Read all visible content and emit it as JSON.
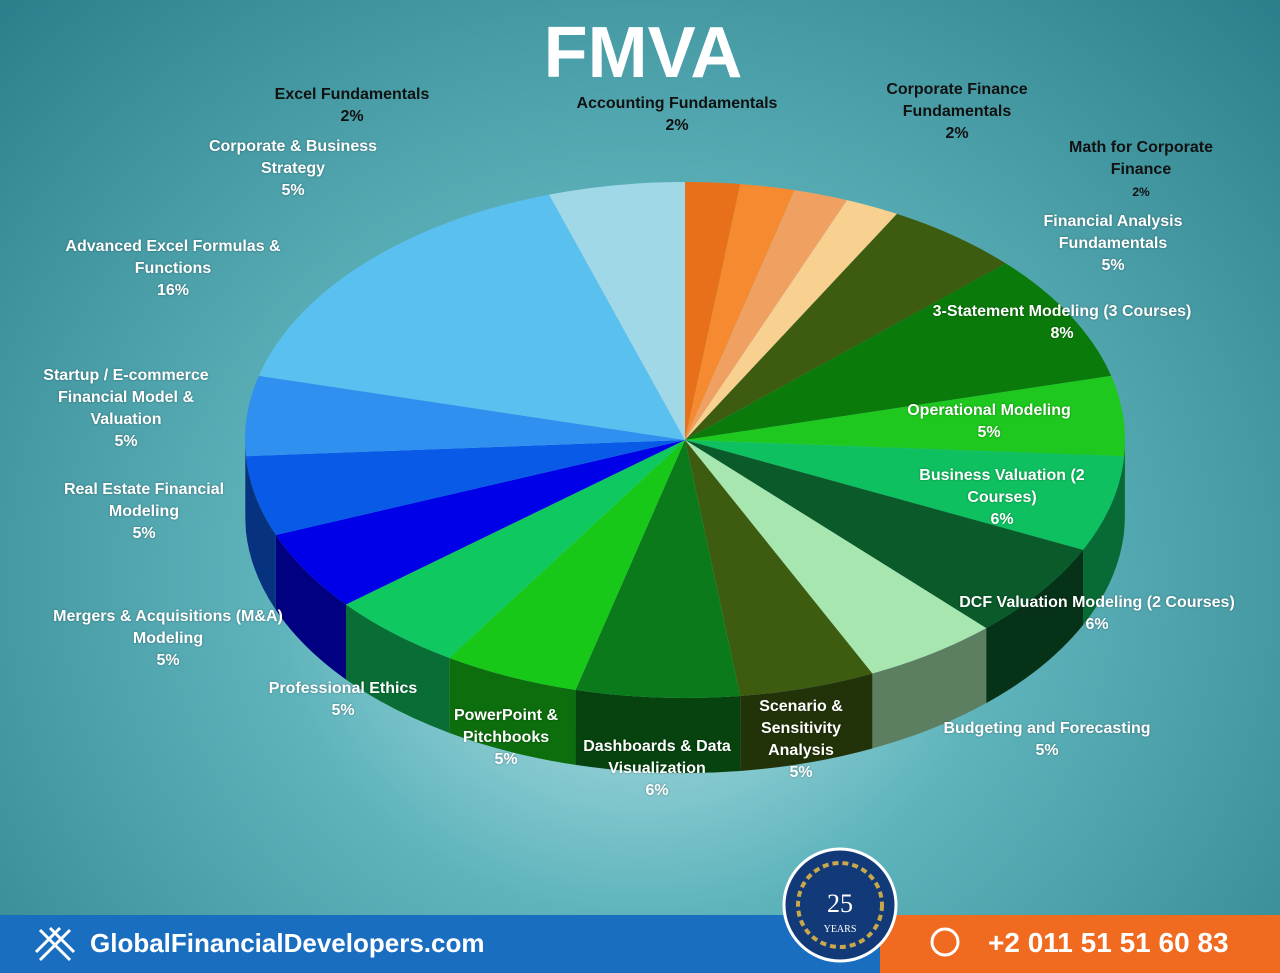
{
  "chart_data": {
    "type": "pie",
    "title": "FMVA",
    "categories": [
      "Excel Fundamentals",
      "Accounting Fundamentals",
      "Corporate Finance Fundamentals",
      "Math for Corporate Finance",
      "Financial Analysis Fundamentals",
      "3-Statement Modeling (3 Courses)",
      "Operational Modeling",
      "Business Valuation (2 Courses)",
      "DCF Valuation Modeling (2 Courses)",
      "Budgeting and Forecasting",
      "Scenario & Sensitivity Analysis",
      "Dashboards & Data Visualization",
      "PowerPoint & Pitchbooks",
      "Professional Ethics",
      "Mergers & Acquisitions (M&A) Modeling",
      "Real Estate Financial Modeling",
      "Startup / E-commerce Financial Model & Valuation",
      "Advanced Excel Formulas & Functions",
      "Corporate & Business Strategy"
    ],
    "values": [
      2,
      2,
      2,
      2,
      5,
      8,
      5,
      6,
      6,
      5,
      5,
      6,
      5,
      5,
      5,
      5,
      5,
      16,
      5
    ],
    "value_labels": [
      "2%",
      "2%",
      "2%",
      "2%",
      "5%",
      "8%",
      "5%",
      "6%",
      "6%",
      "5%",
      "5%",
      "6%",
      "5%",
      "5%",
      "5%",
      "5%",
      "5%",
      "16%",
      "5%"
    ],
    "colors": [
      "#e8701a",
      "#f58a30",
      "#f0a060",
      "#f8d090",
      "#3d5c10",
      "#0a7a0a",
      "#1ec81e",
      "#0ec060",
      "#0a5a2a",
      "#a8e6b0",
      "#3d5c10",
      "#0a7a1a",
      "#18c818",
      "#10c860",
      "#0000e8",
      "#0a5ae8",
      "#3090f0",
      "#5ac0f0",
      "#a0d8e8"
    ]
  },
  "footer": {
    "website": "GlobalFinancialDevelopers.com",
    "phone": "+2 011 51 51  60 83",
    "badge_number": "25",
    "badge_text": "YEARS"
  }
}
